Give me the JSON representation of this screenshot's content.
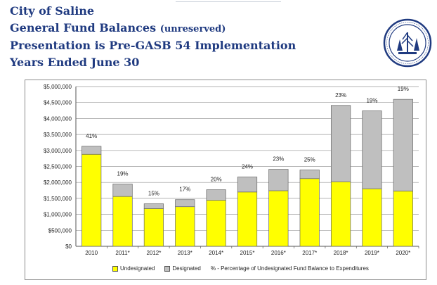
{
  "header": {
    "line1": "City of Saline",
    "line2_main": "General Fund Balances",
    "line2_sub": "(unreserved)",
    "line3": "Presentation is Pre-GASB 54 Implementation",
    "line4": "Years Ended June 30"
  },
  "colors": {
    "title": "#1f3a80",
    "undesignated": "#ffff00",
    "designated": "#bfbfbf",
    "seal": "#1f3a80"
  },
  "legend": {
    "undesignated": "Undesignated",
    "designated": "Designated",
    "percent": "% - Percentage of Undesignated Fund Balance to Expenditures"
  },
  "chart_data": {
    "type": "bar",
    "stacked": true,
    "categories": [
      "2010",
      "2011*",
      "2012*",
      "2013*",
      "2014*",
      "2015*",
      "2016*",
      "2017*",
      "2018*",
      "2019*",
      "2020*"
    ],
    "series": [
      {
        "name": "Undesignated",
        "values": [
          2880000,
          1560000,
          1180000,
          1240000,
          1440000,
          1700000,
          1740000,
          2120000,
          2020000,
          1800000,
          1730000
        ]
      },
      {
        "name": "Designated",
        "values": [
          250000,
          390000,
          150000,
          220000,
          330000,
          470000,
          670000,
          270000,
          2390000,
          2440000,
          2870000
        ]
      }
    ],
    "data_labels": [
      "41%",
      "19%",
      "15%",
      "17%",
      "20%",
      "24%",
      "23%",
      "25%",
      "23%",
      "19%",
      "19%"
    ],
    "y_ticks": [
      "$0",
      "$500,000",
      "$1,000,000",
      "$1,500,000",
      "$2,000,000",
      "$2,500,000",
      "$3,000,000",
      "$3,500,000",
      "$4,000,000",
      "$4,500,000",
      "$5,000,000"
    ],
    "ylim": [
      0,
      5000000
    ],
    "ystep": 500000,
    "grid": true,
    "legend_position": "bottom"
  }
}
